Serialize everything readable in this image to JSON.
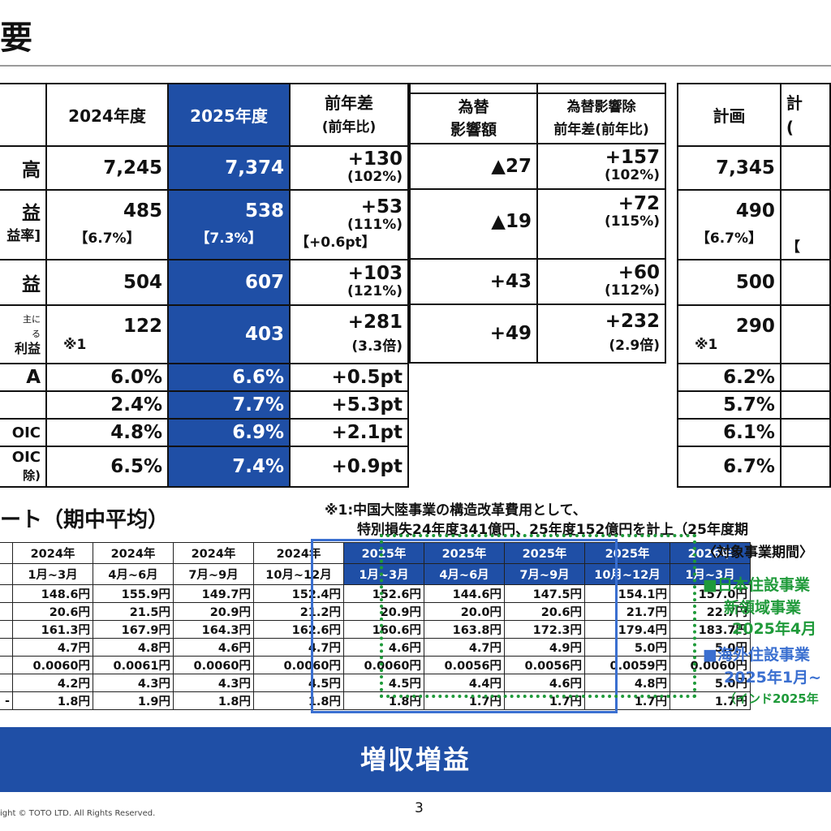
{
  "title": "要",
  "main_table": {
    "headers": {
      "y2024": "2024年度",
      "y2025": "2025年度",
      "diff": "前年差",
      "diff_sub": "(前年比)"
    },
    "rows": [
      {
        "label": "高",
        "v2024": "7,245",
        "v2025": "7,374",
        "diff": "+130",
        "diff_sub": "(102%)"
      },
      {
        "label": "益",
        "label2": "益率]",
        "v2024": "485",
        "v2024_sub": "【6.7%】",
        "v2025": "538",
        "v2025_sub": "【7.3%】",
        "diff": "+53",
        "diff_sub": "(111%)",
        "diff_sub2": "【+0.6pt】"
      },
      {
        "label": "益",
        "v2024": "504",
        "v2025": "607",
        "diff": "+103",
        "diff_sub": "(121%)"
      },
      {
        "label_small1": "主に",
        "label_small2": "る",
        "label": "利益",
        "v2024": "122",
        "v2024_note": "※1",
        "v2025": "403",
        "diff": "+281",
        "diff_sub": "(3.3倍)"
      },
      {
        "label": "A",
        "v2024": "6.0%",
        "v2025": "6.6%",
        "diff": "+0.5pt"
      },
      {
        "label": "",
        "v2024": "2.4%",
        "v2025": "7.7%",
        "diff": "+5.3pt"
      },
      {
        "label": "OIC",
        "v2024": "4.8%",
        "v2025": "6.9%",
        "diff": "+2.1pt"
      },
      {
        "label": "OIC",
        "label2": "除)",
        "v2024": "6.5%",
        "v2025": "7.4%",
        "diff": "+0.9pt"
      }
    ]
  },
  "fx_table": {
    "h1a": "為替",
    "h1b": "影響額",
    "h2a": "為替影響除",
    "h2b": "前年差(前年比)",
    "rows": [
      {
        "fx": "▲27",
        "ex": "+157",
        "ex_sub": "(102%)"
      },
      {
        "fx": "▲19",
        "ex": "+72",
        "ex_sub": "(115%)"
      },
      {
        "fx": "+43",
        "ex": "+60",
        "ex_sub": "(112%)"
      },
      {
        "fx": "+49",
        "ex": "+232",
        "ex_sub": "(2.9倍)"
      }
    ]
  },
  "plan_table": {
    "header": "計画",
    "header2": "計",
    "header2_sub": "(",
    "rows": [
      {
        "v": "7,345"
      },
      {
        "v": "490",
        "sub": "【6.7%】",
        "sub2": "【"
      },
      {
        "v": "500"
      },
      {
        "v": "290",
        "note": "※1"
      },
      {
        "v": "6.2%"
      },
      {
        "v": "5.7%"
      },
      {
        "v": "6.1%"
      },
      {
        "v": "6.7%"
      }
    ]
  },
  "notes": {
    "line1": "※1:中国大陸事業の構造改革費用として、",
    "line2": "特別損失24年度341億円、25年度152億円を計上（25年度期"
  },
  "rate_title": "ート（期中平均）",
  "rate_table": {
    "headers": [
      {
        "y": "2024年",
        "p": "1月~3月"
      },
      {
        "y": "2024年",
        "p": "4月~6月"
      },
      {
        "y": "2024年",
        "p": "7月~9月"
      },
      {
        "y": "2024年",
        "p": "10月~12月"
      },
      {
        "y": "2025年",
        "p": "1月~3月"
      },
      {
        "y": "2025年",
        "p": "4月~6月"
      },
      {
        "y": "2025年",
        "p": "7月~9月"
      },
      {
        "y": "2025年",
        "p": "10月~12月"
      },
      {
        "y": "2026年",
        "p": "1月~3月"
      }
    ],
    "rows": [
      {
        "l": "",
        "v": [
          "148.6円",
          "155.9円",
          "149.7円",
          "152.4円",
          "152.6円",
          "144.6円",
          "147.5円",
          "154.1円",
          "157.0円"
        ]
      },
      {
        "l": "",
        "v": [
          "20.6円",
          "21.5円",
          "20.9円",
          "21.2円",
          "20.9円",
          "20.0円",
          "20.6円",
          "21.7円",
          "22.7円"
        ]
      },
      {
        "l": "",
        "v": [
          "161.3円",
          "167.9円",
          "164.3円",
          "162.6円",
          "160.6円",
          "163.8円",
          "172.3円",
          "179.4円",
          "183.7円"
        ]
      },
      {
        "l": "",
        "v": [
          "4.7円",
          "4.8円",
          "4.6円",
          "4.7円",
          "4.6円",
          "4.7円",
          "4.9円",
          "5.0円",
          "5.0円"
        ]
      },
      {
        "l": "",
        "v": [
          "0.0060円",
          "0.0061円",
          "0.0060円",
          "0.0060円",
          "0.0060円",
          "0.0056円",
          "0.0056円",
          "0.0059円",
          "0.0060円"
        ]
      },
      {
        "l": "",
        "v": [
          "4.2円",
          "4.3円",
          "4.3円",
          "4.5円",
          "4.5円",
          "4.4円",
          "4.6円",
          "4.8円",
          "5.0円"
        ]
      },
      {
        "l": "-",
        "v": [
          "1.8円",
          "1.9円",
          "1.8円",
          "1.8円",
          "1.8円",
          "1.7円",
          "1.7円",
          "1.7円",
          "1.7円"
        ]
      }
    ]
  },
  "side_note": {
    "header": "〈対象事業期間〉",
    "g1": "■日本住設事業",
    "g2": "新領域事業",
    "g3": "2025年4月",
    "b1": "■海外住設事業",
    "b2": "2025年1月~",
    "b3": "（インド2025年"
  },
  "colors": {
    "accent_blue": "#1f4fa6",
    "green": "#1f9a3a"
  },
  "banner": "増収増益",
  "copyright": "ight © TOTO LTD. All Rights Reserved.",
  "page_number": "3"
}
